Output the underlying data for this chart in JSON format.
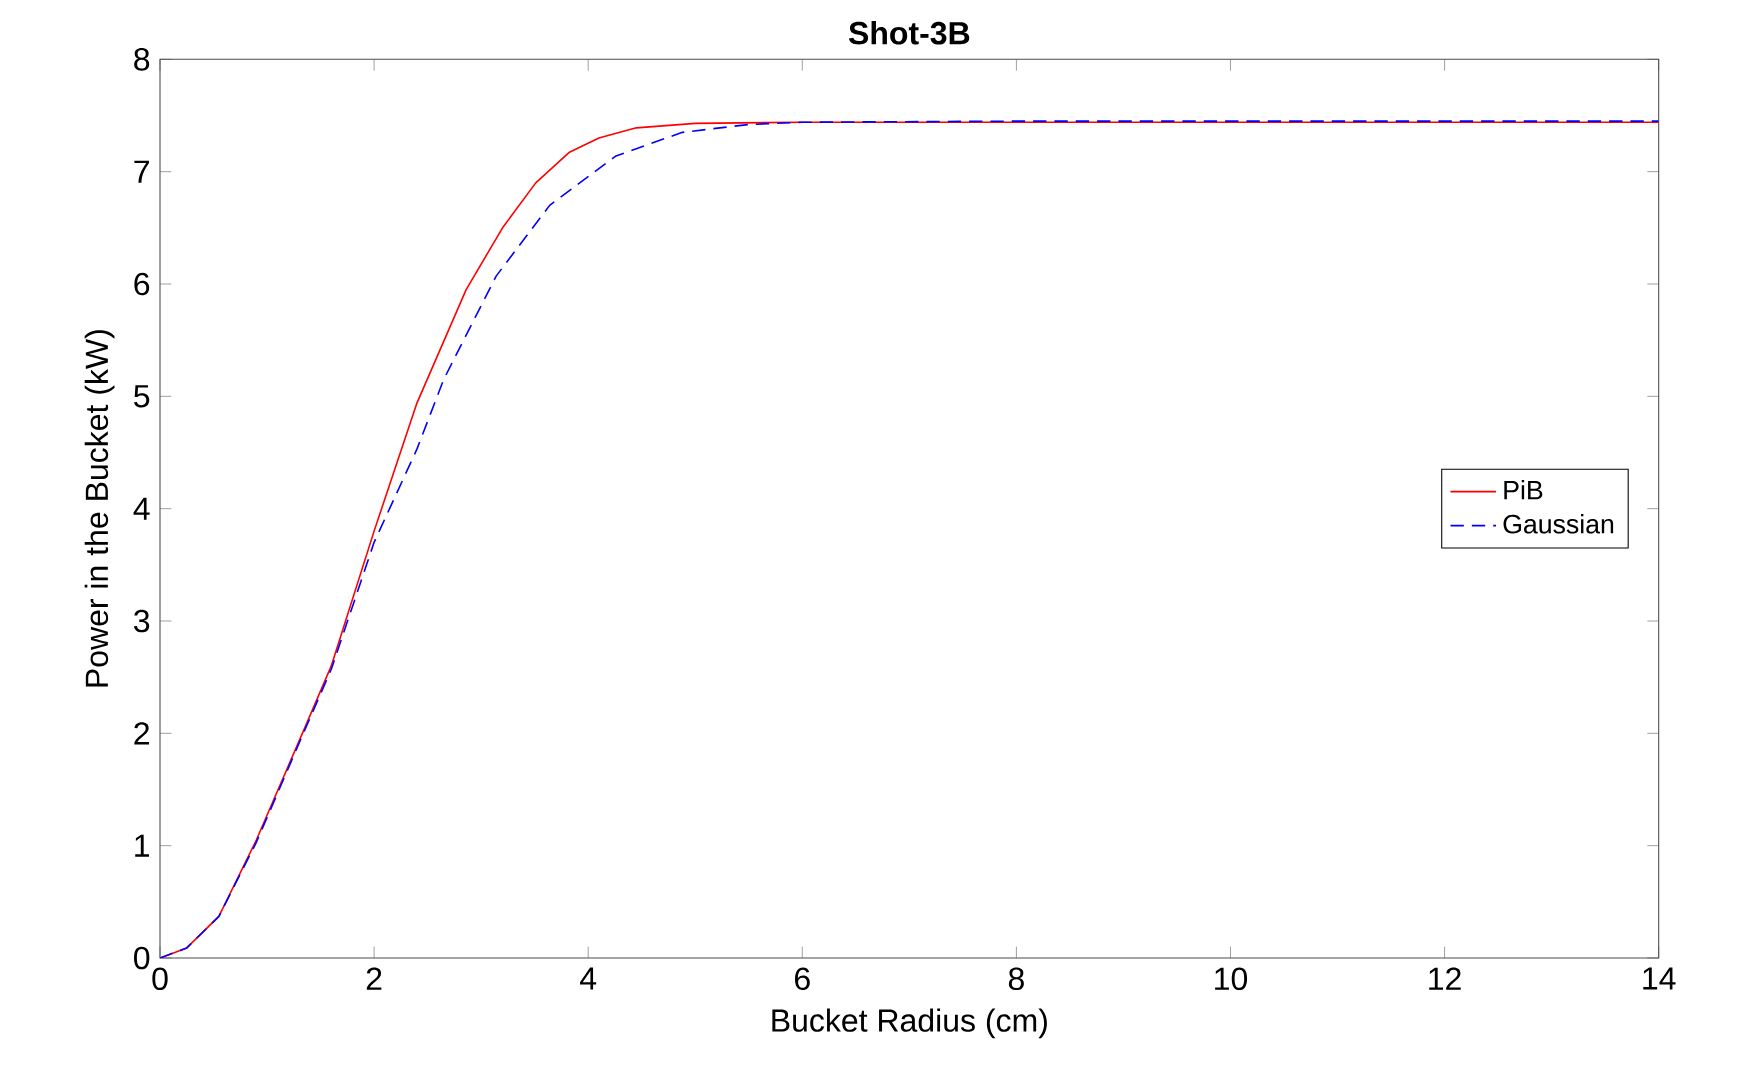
{
  "chart_data": {
    "type": "line",
    "title": "Shot-3B",
    "xlabel": "Bucket Radius (cm)",
    "ylabel": "Power in the Bucket (kW)",
    "xlim": [
      0,
      14
    ],
    "ylim": [
      0,
      8
    ],
    "xticks": [
      0,
      2,
      4,
      6,
      8,
      10,
      12,
      14
    ],
    "yticks": [
      0,
      1,
      2,
      3,
      4,
      5,
      6,
      7,
      8
    ],
    "grid": false,
    "legend": "right",
    "marker": "none",
    "series": [
      {
        "name": "PiB",
        "color": "#ff0000",
        "line_style": "solid",
        "x": [
          0,
          0.25,
          0.55,
          0.9,
          1.33,
          1.6,
          2.0,
          2.4,
          2.86,
          3.2,
          3.51,
          3.82,
          4.1,
          4.45,
          5.0,
          6.0,
          8.0,
          10.0,
          12.0,
          14.0
        ],
        "values": [
          0,
          0.09,
          0.37,
          1.05,
          2.0,
          2.6,
          3.8,
          4.94,
          5.95,
          6.5,
          6.9,
          7.17,
          7.3,
          7.39,
          7.43,
          7.44,
          7.44,
          7.44,
          7.44,
          7.44
        ]
      },
      {
        "name": "Gaussian",
        "color": "#0000ff",
        "line_style": "dashed",
        "x": [
          0,
          0.25,
          0.55,
          0.9,
          1.33,
          1.6,
          2.0,
          2.4,
          2.65,
          3.14,
          3.64,
          4.26,
          4.88,
          5.5,
          6.0,
          8.0,
          10.0,
          12.0,
          14.0
        ],
        "values": [
          0,
          0.09,
          0.37,
          1.03,
          1.98,
          2.57,
          3.7,
          4.53,
          5.15,
          6.07,
          6.7,
          7.14,
          7.35,
          7.42,
          7.44,
          7.45,
          7.45,
          7.45,
          7.45
        ]
      }
    ]
  }
}
